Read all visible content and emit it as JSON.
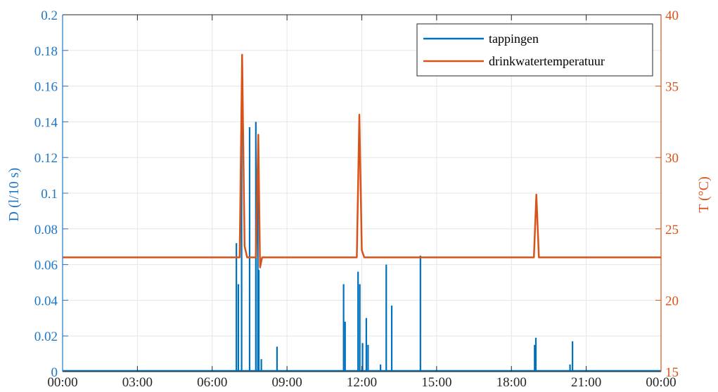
{
  "chart_data": {
    "type": "line",
    "xlabel": "",
    "x_ticks": [
      "00:00",
      "03:00",
      "06:00",
      "09:00",
      "12:00",
      "15:00",
      "18:00",
      "21:00",
      "00:00"
    ],
    "x_unit": "hours",
    "xlim": [
      0,
      24
    ],
    "left_axis": {
      "label": "D (l/10 s)",
      "ylim": [
        0,
        0.2
      ],
      "ticks": [
        "0",
        "0.02",
        "0.04",
        "0.06",
        "0.08",
        "0.1",
        "0.12",
        "0.14",
        "0.16",
        "0.18",
        "0.2"
      ],
      "color": "#1f77c4"
    },
    "right_axis": {
      "label": "T (°C)",
      "ylim": [
        15,
        40
      ],
      "ticks": [
        "15",
        "20",
        "25",
        "30",
        "35",
        "40"
      ],
      "color": "#d95319"
    },
    "grid": true,
    "legend_position": "top-right",
    "series": [
      {
        "name": "tappingen",
        "axis": "left",
        "color": "#0072bd",
        "style": "spikes",
        "points": [
          [
            6.97,
            0.072
          ],
          [
            7.05,
            0.049
          ],
          [
            7.18,
            0.142
          ],
          [
            7.5,
            0.137
          ],
          [
            7.75,
            0.14
          ],
          [
            7.83,
            0.105
          ],
          [
            7.87,
            0.057
          ],
          [
            7.97,
            0.007
          ],
          [
            8.6,
            0.014
          ],
          [
            11.27,
            0.049
          ],
          [
            11.33,
            0.028
          ],
          [
            11.85,
            0.056
          ],
          [
            11.92,
            0.049
          ],
          [
            12.03,
            0.016
          ],
          [
            12.18,
            0.03
          ],
          [
            12.25,
            0.015
          ],
          [
            12.75,
            0.004
          ],
          [
            12.98,
            0.06
          ],
          [
            13.2,
            0.037
          ],
          [
            14.35,
            0.065
          ],
          [
            18.93,
            0.015
          ],
          [
            18.98,
            0.019
          ],
          [
            20.35,
            0.004
          ],
          [
            20.45,
            0.017
          ]
        ]
      },
      {
        "name": "drinkwatertemperatuur",
        "axis": "right",
        "color": "#d95319",
        "style": "line",
        "points": [
          [
            0,
            23
          ],
          [
            7.1,
            23
          ],
          [
            7.2,
            37.2
          ],
          [
            7.3,
            23.8
          ],
          [
            7.4,
            23
          ],
          [
            7.75,
            23
          ],
          [
            7.85,
            31.6
          ],
          [
            7.92,
            22.3
          ],
          [
            8.0,
            23
          ],
          [
            11.8,
            23
          ],
          [
            11.9,
            33
          ],
          [
            12.0,
            23.5
          ],
          [
            12.1,
            23
          ],
          [
            18.9,
            23
          ],
          [
            19.0,
            27.4
          ],
          [
            19.1,
            23
          ],
          [
            24,
            23
          ]
        ]
      }
    ]
  }
}
